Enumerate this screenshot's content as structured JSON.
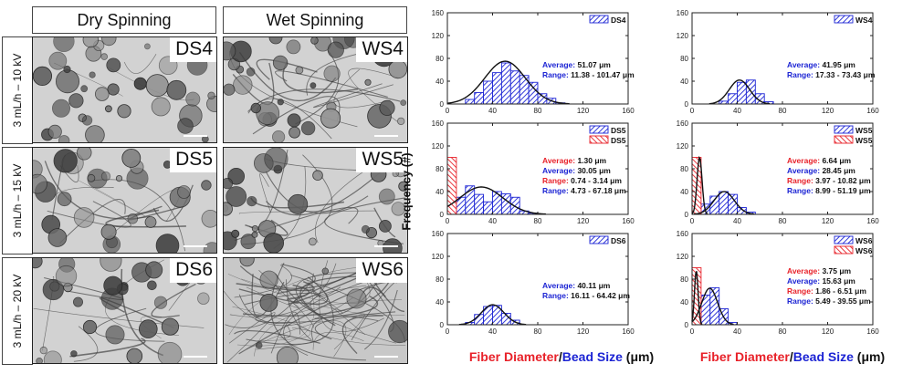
{
  "headers": {
    "dry": "Dry Spinning",
    "wet": "Wet Spinning"
  },
  "rows": [
    {
      "label": "3 mL/h – 10 kV",
      "dry_tag": "DS4",
      "wet_tag": "WS4"
    },
    {
      "label": "3 mL/h – 15 kV",
      "dry_tag": "DS5",
      "wet_tag": "WS5"
    },
    {
      "label": "3 mL/h – 20 kV",
      "dry_tag": "DS6",
      "wet_tag": "WS6"
    }
  ],
  "colors": {
    "bead": "#1c24d4",
    "fiber": "#e8222a",
    "fit": "#111111"
  },
  "y_axis_label": "Frequency (#)",
  "x_axis_label": {
    "fiber": "Fiber Diameter",
    "slash": "/",
    "bead": "Bead Size",
    "unit": " (μm)"
  },
  "chart_data": [
    {
      "id": "DS4",
      "type": "bar",
      "xlim": [
        0,
        160
      ],
      "ylim": [
        0,
        160
      ],
      "bin_width": 8,
      "x_ticks": [
        0,
        40,
        80,
        120,
        160
      ],
      "y_ticks": [
        0,
        40,
        80,
        120,
        160
      ],
      "series": [
        {
          "name": "DS4",
          "color": "blue",
          "bins": [
            {
              "x": 16,
              "y": 8
            },
            {
              "x": 24,
              "y": 20
            },
            {
              "x": 32,
              "y": 40
            },
            {
              "x": 40,
              "y": 55
            },
            {
              "x": 48,
              "y": 72
            },
            {
              "x": 56,
              "y": 58
            },
            {
              "x": 64,
              "y": 50
            },
            {
              "x": 72,
              "y": 38
            },
            {
              "x": 80,
              "y": 18
            },
            {
              "x": 88,
              "y": 10
            },
            {
              "x": 96,
              "y": 2
            }
          ],
          "fit": {
            "mean": 51.07,
            "sd": 18,
            "peak": 75
          }
        }
      ],
      "annotations": [
        {
          "text": "Average: 51.07 μm",
          "color": "blue"
        },
        {
          "text": "Range: 11.38 - 101.47 μm",
          "color": "blue"
        }
      ]
    },
    {
      "id": "WS4",
      "type": "bar",
      "xlim": [
        0,
        160
      ],
      "ylim": [
        0,
        160
      ],
      "bin_width": 8,
      "x_ticks": [
        0,
        40,
        80,
        120,
        160
      ],
      "y_ticks": [
        0,
        40,
        80,
        120,
        160
      ],
      "series": [
        {
          "name": "WS4",
          "color": "blue",
          "bins": [
            {
              "x": 24,
              "y": 5
            },
            {
              "x": 32,
              "y": 18
            },
            {
              "x": 40,
              "y": 38
            },
            {
              "x": 48,
              "y": 42
            },
            {
              "x": 56,
              "y": 18
            },
            {
              "x": 64,
              "y": 4
            }
          ],
          "fit": {
            "mean": 41.95,
            "sd": 9,
            "peak": 42
          }
        }
      ],
      "annotations": [
        {
          "text": "Average: 41.95 μm",
          "color": "blue"
        },
        {
          "text": "Range: 17.33 - 73.43 μm",
          "color": "blue"
        }
      ]
    },
    {
      "id": "DS5",
      "type": "bar",
      "xlim": [
        0,
        160
      ],
      "ylim": [
        0,
        160
      ],
      "bin_width": 8,
      "x_ticks": [
        0,
        40,
        80,
        120,
        160
      ],
      "y_ticks": [
        0,
        40,
        80,
        120,
        160
      ],
      "series": [
        {
          "name": "DS5",
          "color": "blue",
          "bins": [
            {
              "x": 0,
              "y": 28
            },
            {
              "x": 8,
              "y": 30
            },
            {
              "x": 16,
              "y": 50
            },
            {
              "x": 24,
              "y": 35
            },
            {
              "x": 32,
              "y": 22
            },
            {
              "x": 40,
              "y": 40
            },
            {
              "x": 48,
              "y": 36
            },
            {
              "x": 56,
              "y": 30
            },
            {
              "x": 64,
              "y": 6
            },
            {
              "x": 72,
              "y": 2
            }
          ],
          "fit": {
            "mean": 30.05,
            "sd": 19,
            "peak": 48
          }
        },
        {
          "name": "DS5",
          "color": "red",
          "bins": [
            {
              "x": 0,
              "y": 100
            }
          ]
        }
      ],
      "annotations": [
        {
          "text": "Average: 1.30 μm",
          "color": "red"
        },
        {
          "text": "Average: 30.05 μm",
          "color": "blue"
        },
        {
          "text": "Range: 0.74 - 3.14 μm",
          "color": "red"
        },
        {
          "text": "Range: 4.73 - 67.18 μm",
          "color": "blue"
        }
      ]
    },
    {
      "id": "WS5",
      "type": "bar",
      "xlim": [
        0,
        160
      ],
      "ylim": [
        0,
        160
      ],
      "bin_width": 8,
      "x_ticks": [
        0,
        40,
        80,
        120,
        160
      ],
      "y_ticks": [
        0,
        40,
        80,
        120,
        160
      ],
      "series": [
        {
          "name": "WS5",
          "color": "blue",
          "bins": [
            {
              "x": 8,
              "y": 18
            },
            {
              "x": 16,
              "y": 32
            },
            {
              "x": 24,
              "y": 40
            },
            {
              "x": 32,
              "y": 35
            },
            {
              "x": 40,
              "y": 12
            },
            {
              "x": 48,
              "y": 4
            }
          ],
          "fit": {
            "mean": 28.45,
            "sd": 9,
            "peak": 40
          }
        },
        {
          "name": "WS5",
          "color": "red",
          "bins": [
            {
              "x": 0,
              "y": 100
            }
          ],
          "fit": {
            "mean": 6.64,
            "sd": 2.2,
            "peak": 100
          }
        }
      ],
      "annotations": [
        {
          "text": "Average: 6.64 μm",
          "color": "red"
        },
        {
          "text": "Average: 28.45 μm",
          "color": "blue"
        },
        {
          "text": "Range: 3.97 - 10.82 μm",
          "color": "red"
        },
        {
          "text": "Range: 8.99 - 51.19 μm",
          "color": "blue"
        }
      ]
    },
    {
      "id": "DS6",
      "type": "bar",
      "xlim": [
        0,
        160
      ],
      "ylim": [
        0,
        160
      ],
      "bin_width": 8,
      "x_ticks": [
        0,
        40,
        80,
        120,
        160
      ],
      "y_ticks": [
        0,
        40,
        80,
        120,
        160
      ],
      "series": [
        {
          "name": "DS6",
          "color": "blue",
          "bins": [
            {
              "x": 16,
              "y": 4
            },
            {
              "x": 24,
              "y": 18
            },
            {
              "x": 32,
              "y": 32
            },
            {
              "x": 40,
              "y": 34
            },
            {
              "x": 48,
              "y": 20
            },
            {
              "x": 56,
              "y": 8
            }
          ],
          "fit": {
            "mean": 40.11,
            "sd": 10,
            "peak": 35
          }
        }
      ],
      "annotations": [
        {
          "text": "Average: 40.11 μm",
          "color": "blue"
        },
        {
          "text": "Range: 16.11 - 64.42 μm",
          "color": "blue"
        }
      ]
    },
    {
      "id": "WS6",
      "type": "bar",
      "xlim": [
        0,
        160
      ],
      "ylim": [
        0,
        160
      ],
      "bin_width": 8,
      "x_ticks": [
        0,
        40,
        80,
        120,
        160
      ],
      "y_ticks": [
        0,
        40,
        80,
        120,
        160
      ],
      "series": [
        {
          "name": "WS6",
          "color": "blue",
          "bins": [
            {
              "x": 0,
              "y": 38
            },
            {
              "x": 8,
              "y": 52
            },
            {
              "x": 16,
              "y": 65
            },
            {
              "x": 24,
              "y": 28
            },
            {
              "x": 32,
              "y": 4
            }
          ],
          "fit": {
            "mean": 15.63,
            "sd": 7,
            "peak": 64
          }
        },
        {
          "name": "WS6",
          "color": "red",
          "bins": [
            {
              "x": 0,
              "y": 100
            }
          ],
          "fit": {
            "mean": 3.75,
            "sd": 1.6,
            "peak": 95
          }
        }
      ],
      "annotations": [
        {
          "text": "Average: 3.75 μm",
          "color": "red"
        },
        {
          "text": "Average: 15.63 μm",
          "color": "blue"
        },
        {
          "text": "Range: 1.86 - 6.51 μm",
          "color": "red"
        },
        {
          "text": "Range: 5.49 - 39.55 μm",
          "color": "blue"
        }
      ]
    }
  ]
}
